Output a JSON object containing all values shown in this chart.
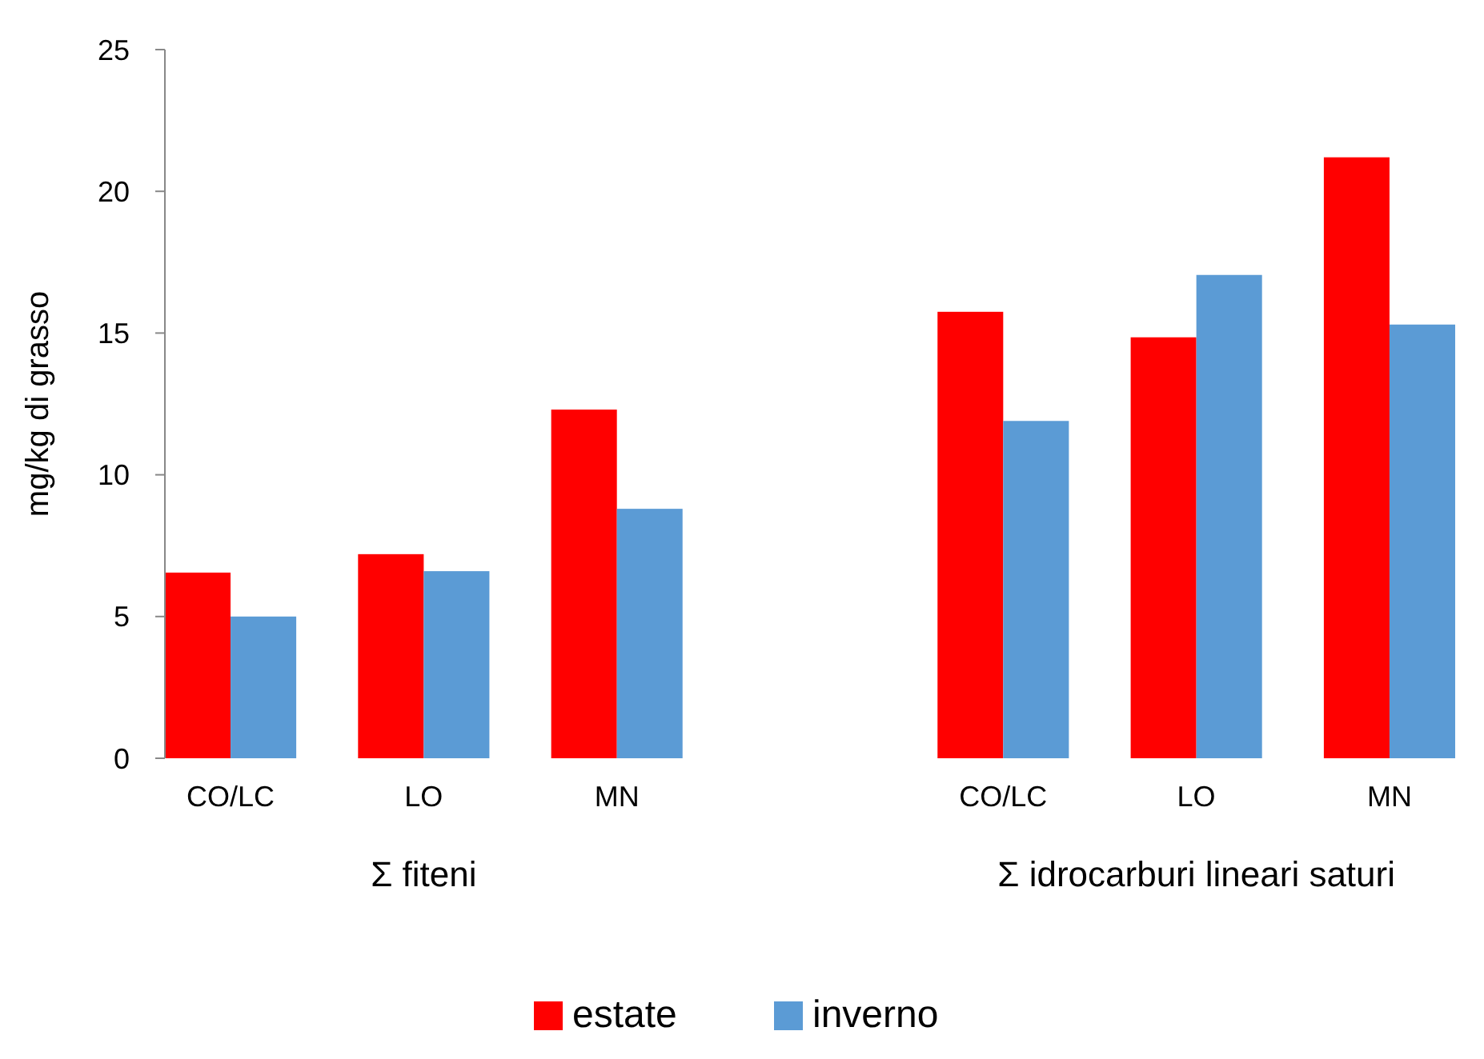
{
  "chart_data": {
    "type": "bar",
    "ylabel": "mg/kg di grasso",
    "categories": [
      "CO/LC",
      "LO",
      "MN",
      null,
      "CO/LC",
      "LO",
      "MN"
    ],
    "series": [
      {
        "name": "estate",
        "color": "#ff0000",
        "values": [
          6.55,
          7.2,
          12.3,
          null,
          15.75,
          14.85,
          21.2
        ]
      },
      {
        "name": "inverno",
        "color": "#5b9bd5",
        "values": [
          5.0,
          6.6,
          8.8,
          null,
          11.9,
          17.05,
          15.3
        ]
      }
    ],
    "ylim": [
      0,
      25
    ],
    "yticks": [
      0,
      5,
      10,
      15,
      20,
      25
    ],
    "grid": false,
    "legend": "bottom",
    "annotations": [
      "Σ fiteni",
      "Σ idrocarburi lineari saturi"
    ]
  }
}
